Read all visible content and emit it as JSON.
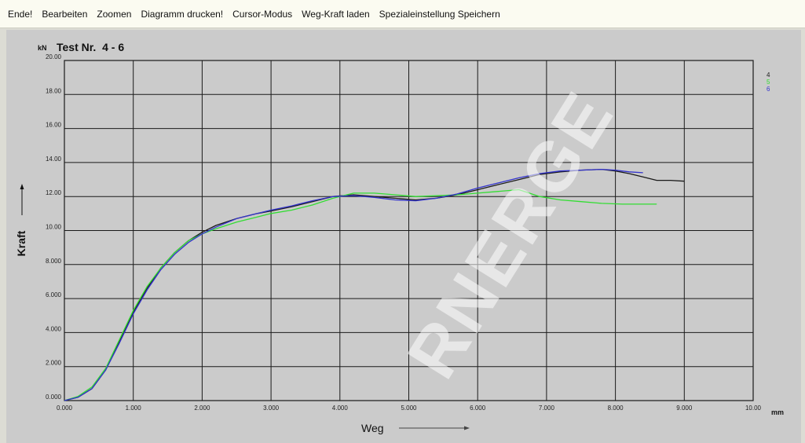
{
  "menu": {
    "items": [
      "Ende!",
      "Bearbeiten",
      "Zoomen",
      "Diagramm drucken!",
      "Cursor-Modus",
      "Weg-Kraft laden",
      "Spezialeinstellung Speichern"
    ]
  },
  "watermark": "RNERGE",
  "colors": {
    "background": "#cbcbcb",
    "grid": "#1a1a1a",
    "menubar": "#fbfbf1"
  },
  "chart_data": {
    "type": "line",
    "title": "Test Nr.  4 - 6",
    "y_unit": "kN",
    "x_unit": "mm",
    "xlabel": "Weg",
    "ylabel": "Kraft",
    "xlim": [
      0,
      10
    ],
    "ylim": [
      0,
      20
    ],
    "x_ticks": [
      {
        "v": 0,
        "label": "0.000"
      },
      {
        "v": 1,
        "label": "1.000"
      },
      {
        "v": 2,
        "label": "2.000"
      },
      {
        "v": 3,
        "label": "3.000"
      },
      {
        "v": 4,
        "label": "4.000"
      },
      {
        "v": 5,
        "label": "5.000"
      },
      {
        "v": 6,
        "label": "6.000"
      },
      {
        "v": 7,
        "label": "7.000"
      },
      {
        "v": 8,
        "label": "8.000"
      },
      {
        "v": 9,
        "label": "9.000"
      },
      {
        "v": 10,
        "label": "10.00"
      }
    ],
    "y_ticks": [
      {
        "v": 0,
        "label": "0.000"
      },
      {
        "v": 2,
        "label": "2.000"
      },
      {
        "v": 4,
        "label": "4.000"
      },
      {
        "v": 6,
        "label": "6.000"
      },
      {
        "v": 8,
        "label": "8.000"
      },
      {
        "v": 10,
        "label": "10.00"
      },
      {
        "v": 12,
        "label": "12.00"
      },
      {
        "v": 14,
        "label": "14.00"
      },
      {
        "v": 16,
        "label": "16.00"
      },
      {
        "v": 18,
        "label": "18.00"
      },
      {
        "v": 20,
        "label": "20.00"
      }
    ],
    "grid": true,
    "legend_position": "top-right",
    "series": [
      {
        "name": "4",
        "color": "#1a1a1a",
        "x": [
          0,
          0.2,
          0.4,
          0.6,
          0.8,
          1.0,
          1.2,
          1.4,
          1.6,
          1.8,
          2.0,
          2.2,
          2.5,
          2.8,
          3.0,
          3.3,
          3.6,
          3.9,
          4.2,
          4.5,
          4.8,
          5.1,
          5.4,
          5.7,
          6.0,
          6.3,
          6.6,
          6.9,
          7.2,
          7.5,
          7.8,
          8.0,
          8.2,
          8.4,
          8.6,
          8.8,
          9.0
        ],
        "y": [
          0,
          0.2,
          0.7,
          1.8,
          3.5,
          5.2,
          6.6,
          7.8,
          8.7,
          9.4,
          9.9,
          10.3,
          10.7,
          11.0,
          11.15,
          11.4,
          11.7,
          12.0,
          12.1,
          12.0,
          11.9,
          11.8,
          11.9,
          12.1,
          12.4,
          12.7,
          13.0,
          13.3,
          13.45,
          13.55,
          13.6,
          13.5,
          13.35,
          13.15,
          12.95,
          12.95,
          12.9
        ]
      },
      {
        "name": "5",
        "color": "#33dd33",
        "x": [
          0,
          0.2,
          0.4,
          0.6,
          0.8,
          1.0,
          1.2,
          1.4,
          1.6,
          1.8,
          2.0,
          2.2,
          2.5,
          2.8,
          3.0,
          3.3,
          3.6,
          3.9,
          4.2,
          4.5,
          4.8,
          5.1,
          5.4,
          5.7,
          6.0,
          6.3,
          6.6,
          6.9,
          7.2,
          7.5,
          7.8,
          8.1,
          8.4,
          8.6
        ],
        "y": [
          0,
          0.25,
          0.8,
          1.9,
          3.6,
          5.3,
          6.7,
          7.8,
          8.7,
          9.4,
          9.8,
          10.1,
          10.5,
          10.8,
          11.0,
          11.2,
          11.5,
          11.9,
          12.2,
          12.2,
          12.1,
          12.0,
          12.05,
          12.1,
          12.2,
          12.3,
          12.4,
          12.0,
          11.8,
          11.7,
          11.6,
          11.55,
          11.55,
          11.55
        ]
      },
      {
        "name": "6",
        "color": "#3333cc",
        "x": [
          0,
          0.2,
          0.4,
          0.6,
          0.8,
          1.0,
          1.2,
          1.4,
          1.6,
          1.8,
          2.0,
          2.2,
          2.5,
          2.8,
          3.0,
          3.3,
          3.6,
          3.9,
          4.2,
          4.5,
          4.8,
          5.1,
          5.4,
          5.7,
          6.0,
          6.3,
          6.6,
          6.9,
          7.2,
          7.5,
          7.8,
          8.0,
          8.2,
          8.4
        ],
        "y": [
          0,
          0.2,
          0.7,
          1.8,
          3.4,
          5.1,
          6.5,
          7.7,
          8.6,
          9.3,
          9.8,
          10.2,
          10.7,
          11.0,
          11.2,
          11.45,
          11.75,
          12.0,
          12.05,
          11.95,
          11.8,
          11.75,
          11.9,
          12.15,
          12.5,
          12.8,
          13.1,
          13.35,
          13.5,
          13.55,
          13.6,
          13.55,
          13.45,
          13.4
        ]
      }
    ]
  }
}
